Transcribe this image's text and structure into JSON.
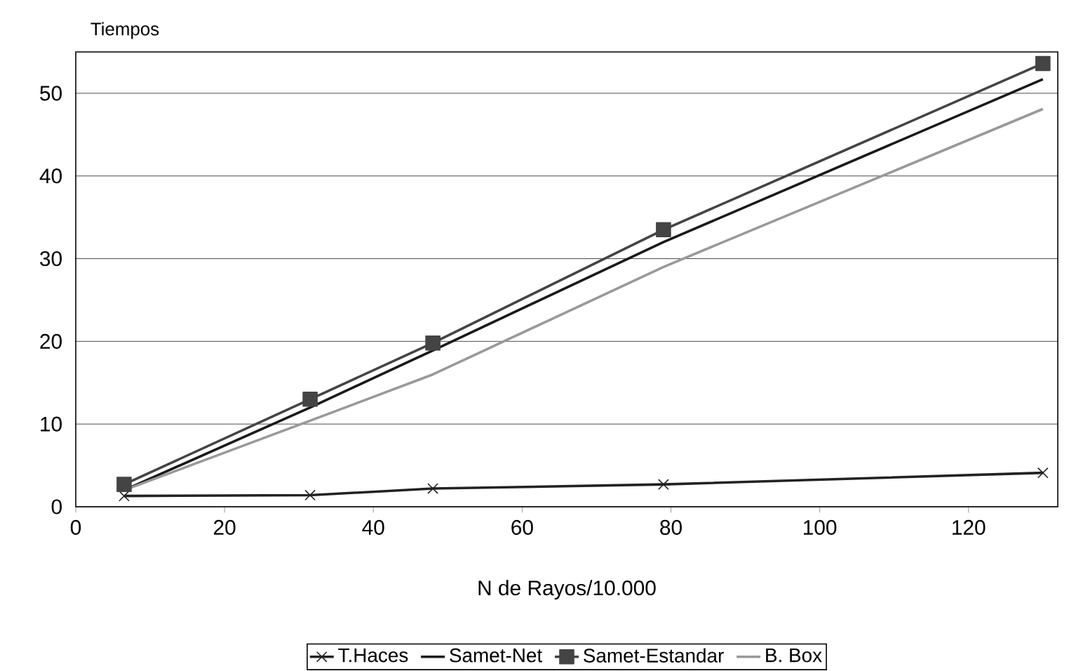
{
  "chart_data": {
    "type": "line",
    "xlabel": "N de Rayos/10.000",
    "ylabel": "Tiempos",
    "xlim": [
      0,
      132
    ],
    "xticks": [
      0,
      20,
      40,
      60,
      80,
      100,
      120
    ],
    "ylim": [
      0,
      55
    ],
    "yticks": [
      0,
      10,
      20,
      30,
      40,
      50
    ],
    "grid": "y",
    "legend": "bottom",
    "line_style": "solid",
    "x": [
      6.5,
      31.5,
      48,
      79,
      130
    ],
    "series": [
      {
        "name": "T.Haces",
        "color": "#222222",
        "marker": "cross",
        "values": [
          1.3,
          1.4,
          2.2,
          2.7,
          4.1
        ]
      },
      {
        "name": "Samet-Net",
        "color": "#1a1a1a",
        "marker": "none",
        "values": [
          2,
          12,
          18.9,
          32,
          51.7
        ]
      },
      {
        "name": "Samet-Estandar",
        "color": "#444444",
        "marker": "square",
        "values": [
          2.7,
          13,
          19.8,
          33.5,
          53.6
        ]
      },
      {
        "name": "B. Box",
        "color": "#999999",
        "marker": "none",
        "values": [
          2,
          10.4,
          16,
          29,
          48.1
        ]
      }
    ]
  }
}
